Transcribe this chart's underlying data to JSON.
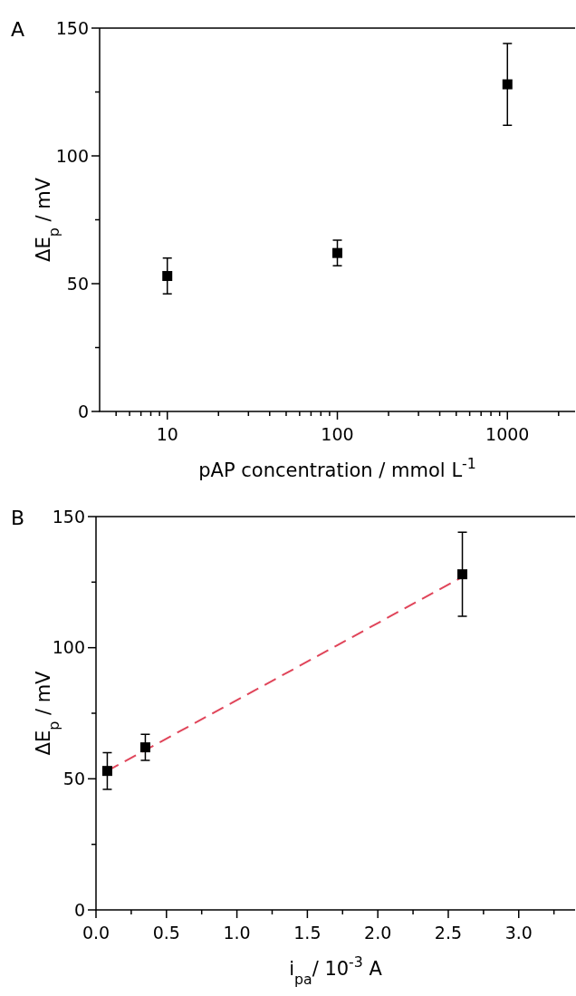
{
  "chart_data": [
    {
      "type": "scatter",
      "title": "A",
      "xlabel": "pAP concentration / mmol L$^{-1}$",
      "ylabel": "ΔE$_{p}$ / mV",
      "log": "x",
      "marker": "square",
      "xlim": [
        4,
        2500
      ],
      "ylim": [
        0,
        150
      ],
      "xticks": [
        {
          "value": 5,
          "label": null
        },
        {
          "value": 6,
          "label": null
        },
        {
          "value": 7,
          "label": null
        },
        {
          "value": 8,
          "label": null
        },
        {
          "value": 9,
          "label": null
        },
        10,
        {
          "value": 20,
          "label": null
        },
        {
          "value": 30,
          "label": null
        },
        {
          "value": 40,
          "label": null
        },
        {
          "value": 50,
          "label": null
        },
        {
          "value": 60,
          "label": null
        },
        {
          "value": 70,
          "label": null
        },
        {
          "value": 80,
          "label": null
        },
        {
          "value": 90,
          "label": null
        },
        100,
        {
          "value": 200,
          "label": null
        },
        {
          "value": 300,
          "label": null
        },
        {
          "value": 400,
          "label": null
        },
        {
          "value": 500,
          "label": null
        },
        {
          "value": 600,
          "label": null
        },
        {
          "value": 700,
          "label": null
        },
        {
          "value": 800,
          "label": null
        },
        {
          "value": 900,
          "label": null
        },
        1000,
        {
          "value": 2000,
          "label": null
        }
      ],
      "yticks": [
        0,
        {
          "value": 25,
          "label": null
        },
        50,
        {
          "value": 75,
          "label": null
        },
        100,
        {
          "value": 125,
          "label": null
        },
        150
      ],
      "series": [
        {
          "color": "#000000",
          "x": [
            10,
            100,
            1000
          ],
          "values": [
            53,
            62,
            128
          ],
          "errors": [
            7,
            5,
            16
          ]
        }
      ]
    },
    {
      "type": "scatter",
      "title": "B",
      "xlabel": "i$_{pa}$/ 10$^{-3}$ A",
      "ylabel": "ΔE$_{p}$ / mV",
      "marker": "square",
      "xlim": [
        0,
        3.4
      ],
      "ylim": [
        0,
        150
      ],
      "xticks": [
        {
          "value": 0,
          "label": "0.0"
        },
        {
          "value": 0.25,
          "label": null
        },
        0.5,
        {
          "value": 0.75,
          "label": null
        },
        {
          "value": 1,
          "label": "1.0"
        },
        {
          "value": 1.25,
          "label": null
        },
        1.5,
        {
          "value": 1.75,
          "label": null
        },
        {
          "value": 2,
          "label": "2.0"
        },
        {
          "value": 2.25,
          "label": null
        },
        2.5,
        {
          "value": 2.75,
          "label": null
        },
        {
          "value": 3,
          "label": "3.0"
        },
        {
          "value": 3.25,
          "label": null
        }
      ],
      "yticks": [
        0,
        {
          "value": 25,
          "label": null
        },
        50,
        {
          "value": 75,
          "label": null
        },
        100,
        {
          "value": 125,
          "label": null
        },
        150
      ],
      "series": [
        {
          "type": "line",
          "color": "#e0455a",
          "line_style": "dashed",
          "marker": "none",
          "x": [
            0.08,
            2.6
          ],
          "values": [
            53,
            127
          ]
        },
        {
          "color": "#000000",
          "x": [
            0.08,
            0.35,
            2.6
          ],
          "values": [
            53,
            62,
            128
          ],
          "errors": [
            7,
            5,
            16
          ]
        }
      ]
    }
  ]
}
